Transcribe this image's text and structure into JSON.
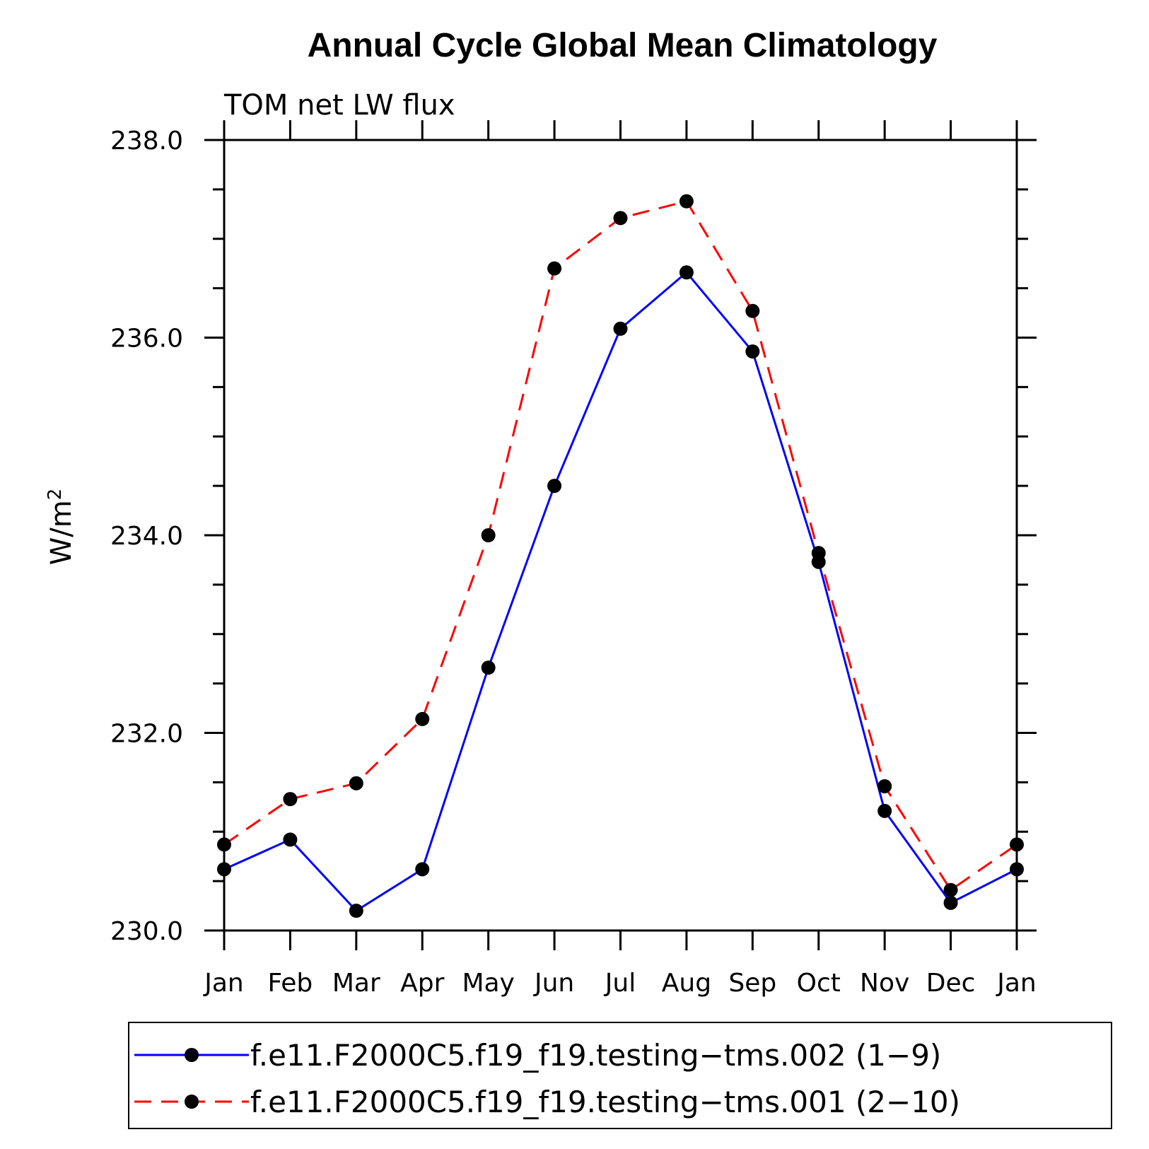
{
  "chart_data": {
    "type": "line",
    "title": "Annual Cycle Global Mean Climatology",
    "subtitle": "TOM net LW flux",
    "ylabel_base": "W/m",
    "ylabel_sup": "2",
    "categories": [
      "Jan",
      "Feb",
      "Mar",
      "Apr",
      "May",
      "Jun",
      "Jul",
      "Aug",
      "Sep",
      "Oct",
      "Nov",
      "Dec",
      "Jan"
    ],
    "ylim": [
      230.0,
      238.0
    ],
    "yticks": [
      "230.0",
      "232.0",
      "234.0",
      "236.0",
      "238.0"
    ],
    "ytick_values": [
      230.0,
      232.0,
      234.0,
      236.0,
      238.0
    ],
    "yminor_step": 0.5,
    "legend_position": "bottom",
    "series": [
      {
        "name": "f.e11.F2000C5.f19_f19.testing−tms.002 (1−9)",
        "color": "#0000ff",
        "dash": "solid",
        "values": [
          230.62,
          230.92,
          230.2,
          230.62,
          232.66,
          234.5,
          236.09,
          236.66,
          235.86,
          233.73,
          231.21,
          230.28,
          230.62
        ]
      },
      {
        "name": "f.e11.F2000C5.f19_f19.testing−tms.001 (2−10)",
        "color": "#ff0000",
        "dash": "dashed",
        "values": [
          230.87,
          231.33,
          231.49,
          232.14,
          234.0,
          236.7,
          237.21,
          237.38,
          236.27,
          233.82,
          231.46,
          230.41,
          230.87
        ]
      }
    ]
  }
}
